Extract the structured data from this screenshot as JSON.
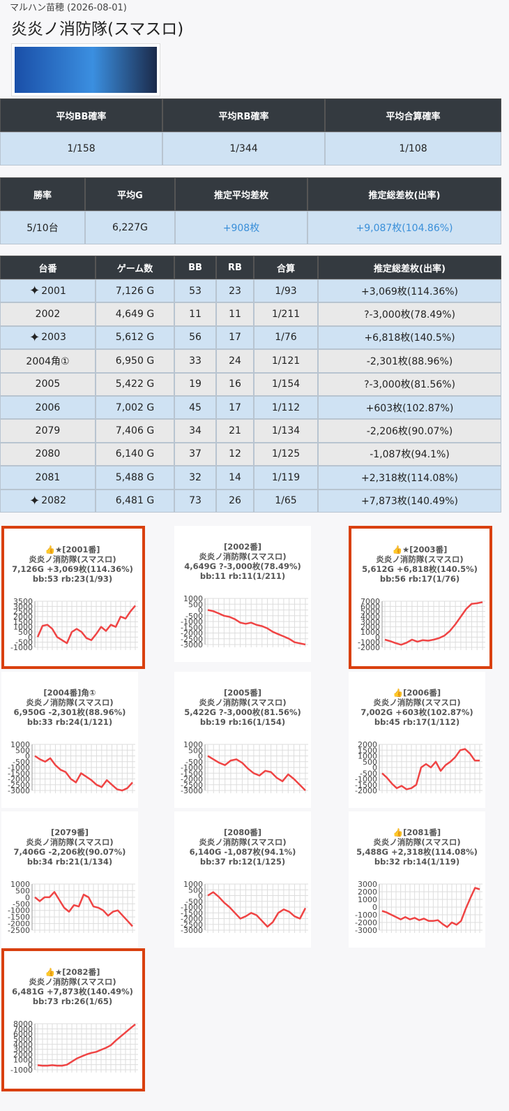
{
  "header": {
    "store": "マルハン苗穂 (2026-08-01)",
    "title": "炎炎ノ消防隊(スマスロ)"
  },
  "summary_table": {
    "headers": [
      "平均BB確率",
      "平均RB確率",
      "平均合算確率"
    ],
    "rows": [
      [
        "1/158",
        "1/344",
        "1/108"
      ]
    ]
  },
  "stats_table": {
    "headers": [
      "勝率",
      "平均G",
      "推定平均差枚",
      "推定総差枚(出率)"
    ],
    "rows": [
      [
        "5/10台",
        "6,227G",
        "+908枚",
        "+9,087枚(104.86%)"
      ]
    ]
  },
  "machine_table": {
    "headers": [
      "台番",
      "ゲーム数",
      "BB",
      "RB",
      "合算",
      "推定総差枚(出率)"
    ],
    "rows": [
      [
        "2001",
        "7,126 G",
        "53",
        "23",
        "1/93",
        "+3,069枚(114.36%)"
      ],
      [
        "2002",
        "4,649 G",
        "11",
        "11",
        "1/211",
        "?-3,000枚(78.49%)"
      ],
      [
        "2003",
        "5,612 G",
        "56",
        "17",
        "1/76",
        "+6,818枚(140.5%)"
      ],
      [
        "2004角①",
        "6,950 G",
        "33",
        "24",
        "1/121",
        "-2,301枚(88.96%)"
      ],
      [
        "2005",
        "5,422 G",
        "19",
        "16",
        "1/154",
        "?-3,000枚(81.56%)"
      ],
      [
        "2006",
        "7,002 G",
        "45",
        "17",
        "1/112",
        "+603枚(102.87%)"
      ],
      [
        "2079",
        "7,406 G",
        "34",
        "21",
        "1/134",
        "-2,206枚(90.07%)"
      ],
      [
        "2080",
        "6,140 G",
        "37",
        "12",
        "1/125",
        "-1,087枚(94.1%)"
      ],
      [
        "2081",
        "5,488 G",
        "32",
        "14",
        "1/119",
        "+2,318枚(114.08%)"
      ],
      [
        "2082",
        "6,481 G",
        "73",
        "26",
        "1/65",
        "+7,873枚(140.49%)"
      ]
    ],
    "marked": [
      true,
      false,
      true,
      false,
      false,
      false,
      false,
      false,
      false,
      true
    ]
  },
  "chart_data": [
    {
      "type": "line",
      "title": "👍★[2001番]",
      "subtitles": [
        "炎炎ノ消防隊(スマスロ)",
        "7,126G +3,069枚(114.36%)",
        "bb:53 rb:23(1/93)"
      ],
      "color": "#ef4444",
      "grid": true,
      "border_color": "#d9400f",
      "values": [
        0,
        1100,
        1200,
        800,
        0,
        -300,
        -600,
        500,
        800,
        500,
        -100,
        -300,
        300,
        1000,
        600,
        1200,
        1000,
        2000,
        1800,
        2500,
        3069
      ],
      "ylim": [
        -1000,
        3500
      ],
      "yticks": [
        3500,
        3000,
        2500,
        2000,
        1500,
        1000,
        500,
        0,
        -500,
        -1000
      ]
    },
    {
      "type": "line",
      "title": "[2002番]",
      "subtitles": [
        "炎炎ノ消防隊(スマスロ)",
        "4,649G ?-3,000枚(78.49%)",
        "bb:11 rb:11(1/211)"
      ],
      "color": "#ef4444",
      "grid": true,
      "values": [
        0,
        -100,
        -300,
        -500,
        -600,
        -800,
        -1100,
        -1200,
        -1100,
        -1300,
        -1400,
        -1600,
        -1900,
        -2100,
        -2300,
        -2500,
        -2800,
        -2900,
        -3000
      ],
      "ylim": [
        -3000,
        1000
      ],
      "yticks": [
        1000,
        500,
        0,
        -500,
        -1000,
        -1500,
        -2000,
        -2500,
        -3000
      ]
    },
    {
      "type": "line",
      "title": "👍★[2003番]",
      "subtitles": [
        "炎炎ノ消防隊(スマスロ)",
        "5,612G +6,818枚(140.5%)",
        "bb:56 rb:17(1/76)"
      ],
      "color": "#ef4444",
      "grid": true,
      "border_color": "#d9400f",
      "values": [
        -500,
        -800,
        -1200,
        -1500,
        -1100,
        -500,
        -900,
        -600,
        -700,
        -500,
        -200,
        300,
        1200,
        2500,
        4000,
        5500,
        6500,
        6600,
        6818
      ],
      "ylim": [
        -2000,
        7000
      ],
      "yticks": [
        7000,
        6000,
        5000,
        4000,
        3000,
        2000,
        1000,
        0,
        -1000,
        -2000
      ]
    },
    {
      "type": "line",
      "title": "[2004番]角①",
      "subtitles": [
        "炎炎ノ消防隊(スマスロ)",
        "6,950G -2,301枚(88.96%)",
        "bb:33 rb:24(1/121)"
      ],
      "color": "#ef4444",
      "grid": true,
      "values": [
        0,
        -300,
        -500,
        -200,
        -800,
        -1200,
        -1400,
        -2000,
        -2300,
        -1500,
        -1800,
        -2100,
        -2500,
        -2700,
        -2100,
        -2500,
        -2900,
        -3000,
        -2800,
        -2301
      ],
      "ylim": [
        -3000,
        1000
      ],
      "yticks": [
        1000,
        500,
        0,
        -500,
        -1000,
        -1500,
        -2000,
        -2500,
        -3000
      ]
    },
    {
      "type": "line",
      "title": "[2005番]",
      "subtitles": [
        "炎炎ノ消防隊(スマスロ)",
        "5,422G ?-3,000枚(81.56%)",
        "bb:19 rb:16(1/154)"
      ],
      "color": "#ef4444",
      "grid": true,
      "values": [
        0,
        -300,
        -600,
        -800,
        -400,
        -300,
        -600,
        -1100,
        -1500,
        -1700,
        -1300,
        -1400,
        -1900,
        -2200,
        -1600,
        -2000,
        -2500,
        -3000
      ],
      "ylim": [
        -3000,
        1000
      ],
      "yticks": [
        1000,
        500,
        0,
        -500,
        -1000,
        -1500,
        -2000,
        -2500,
        -3000
      ]
    },
    {
      "type": "line",
      "title": "👍[2006番]",
      "subtitles": [
        "炎炎ノ消防隊(スマスロ)",
        "7,002G +603枚(102.87%)",
        "bb:45 rb:17(1/112)"
      ],
      "color": "#ef4444",
      "grid": true,
      "values": [
        -500,
        -900,
        -1400,
        -1800,
        -1600,
        -1900,
        -1800,
        -1500,
        0,
        300,
        0,
        500,
        -300,
        200,
        500,
        900,
        1500,
        1600,
        1200,
        600,
        603
      ],
      "ylim": [
        -2000,
        2000
      ],
      "yticks": [
        2000,
        1500,
        1000,
        500,
        0,
        -500,
        -1000,
        -1500,
        -2000
      ]
    },
    {
      "type": "line",
      "title": "[2079番]",
      "subtitles": [
        "炎炎ノ消防隊(スマスロ)",
        "7,406G -2,206枚(90.07%)",
        "bb:34 rb:21(1/134)"
      ],
      "color": "#ef4444",
      "grid": true,
      "values": [
        0,
        -300,
        0,
        0,
        400,
        -200,
        -800,
        -1100,
        -600,
        -700,
        200,
        0,
        -700,
        -800,
        -1000,
        -1400,
        -1100,
        -1000,
        -1400,
        -1800,
        -2206
      ],
      "ylim": [
        -2500,
        1000
      ],
      "yticks": [
        1000,
        500,
        0,
        -500,
        -1000,
        -1500,
        -2000,
        -2500
      ]
    },
    {
      "type": "line",
      "title": "[2080番]",
      "subtitles": [
        "炎炎ノ消防隊(スマスロ)",
        "6,140G -1,087枚(94.1%)",
        "bb:37 rb:12(1/125)"
      ],
      "color": "#ef4444",
      "grid": true,
      "values": [
        0,
        300,
        -100,
        -600,
        -1000,
        -1500,
        -2000,
        -1800,
        -1500,
        -1700,
        -2200,
        -2700,
        -2300,
        -1500,
        -1200,
        -1400,
        -1800,
        -2000,
        -1087
      ],
      "ylim": [
        -3000,
        1000
      ],
      "yticks": [
        1000,
        500,
        0,
        -500,
        -1000,
        -1500,
        -2000,
        -2500,
        -3000
      ]
    },
    {
      "type": "line",
      "title": "👍[2081番]",
      "subtitles": [
        "炎炎ノ消防隊(スマスロ)",
        "5,488G +2,318枚(114.08%)",
        "bb:32 rb:14(1/119)"
      ],
      "color": "#ef4444",
      "grid": true,
      "values": [
        -500,
        -700,
        -1000,
        -1300,
        -1600,
        -1300,
        -1600,
        -1400,
        -1700,
        -1500,
        -1800,
        -1800,
        -1700,
        -2200,
        -2600,
        -2000,
        -2300,
        -1800,
        -200,
        1200,
        2500,
        2318
      ],
      "ylim": [
        -3000,
        3000
      ],
      "yticks": [
        3000,
        2000,
        1000,
        0,
        -1000,
        -2000,
        -3000
      ]
    },
    {
      "type": "line",
      "title": "👍★[2082番]",
      "subtitles": [
        "炎炎ノ消防隊(スマスロ)",
        "6,481G +7,873枚(140.49%)",
        "bb:73 rb:26(1/65)"
      ],
      "color": "#ef4444",
      "grid": true,
      "border_color": "#d9400f",
      "values": [
        -100,
        -200,
        -200,
        -100,
        -200,
        -200,
        0,
        600,
        1200,
        1600,
        2000,
        2300,
        2500,
        2900,
        3300,
        3800,
        4700,
        5500,
        6300,
        7100,
        7873
      ],
      "ylim": [
        -1000,
        8000
      ],
      "yticks": [
        8000,
        7000,
        6000,
        5000,
        4000,
        3000,
        2000,
        1000,
        0,
        -1000
      ]
    }
  ]
}
